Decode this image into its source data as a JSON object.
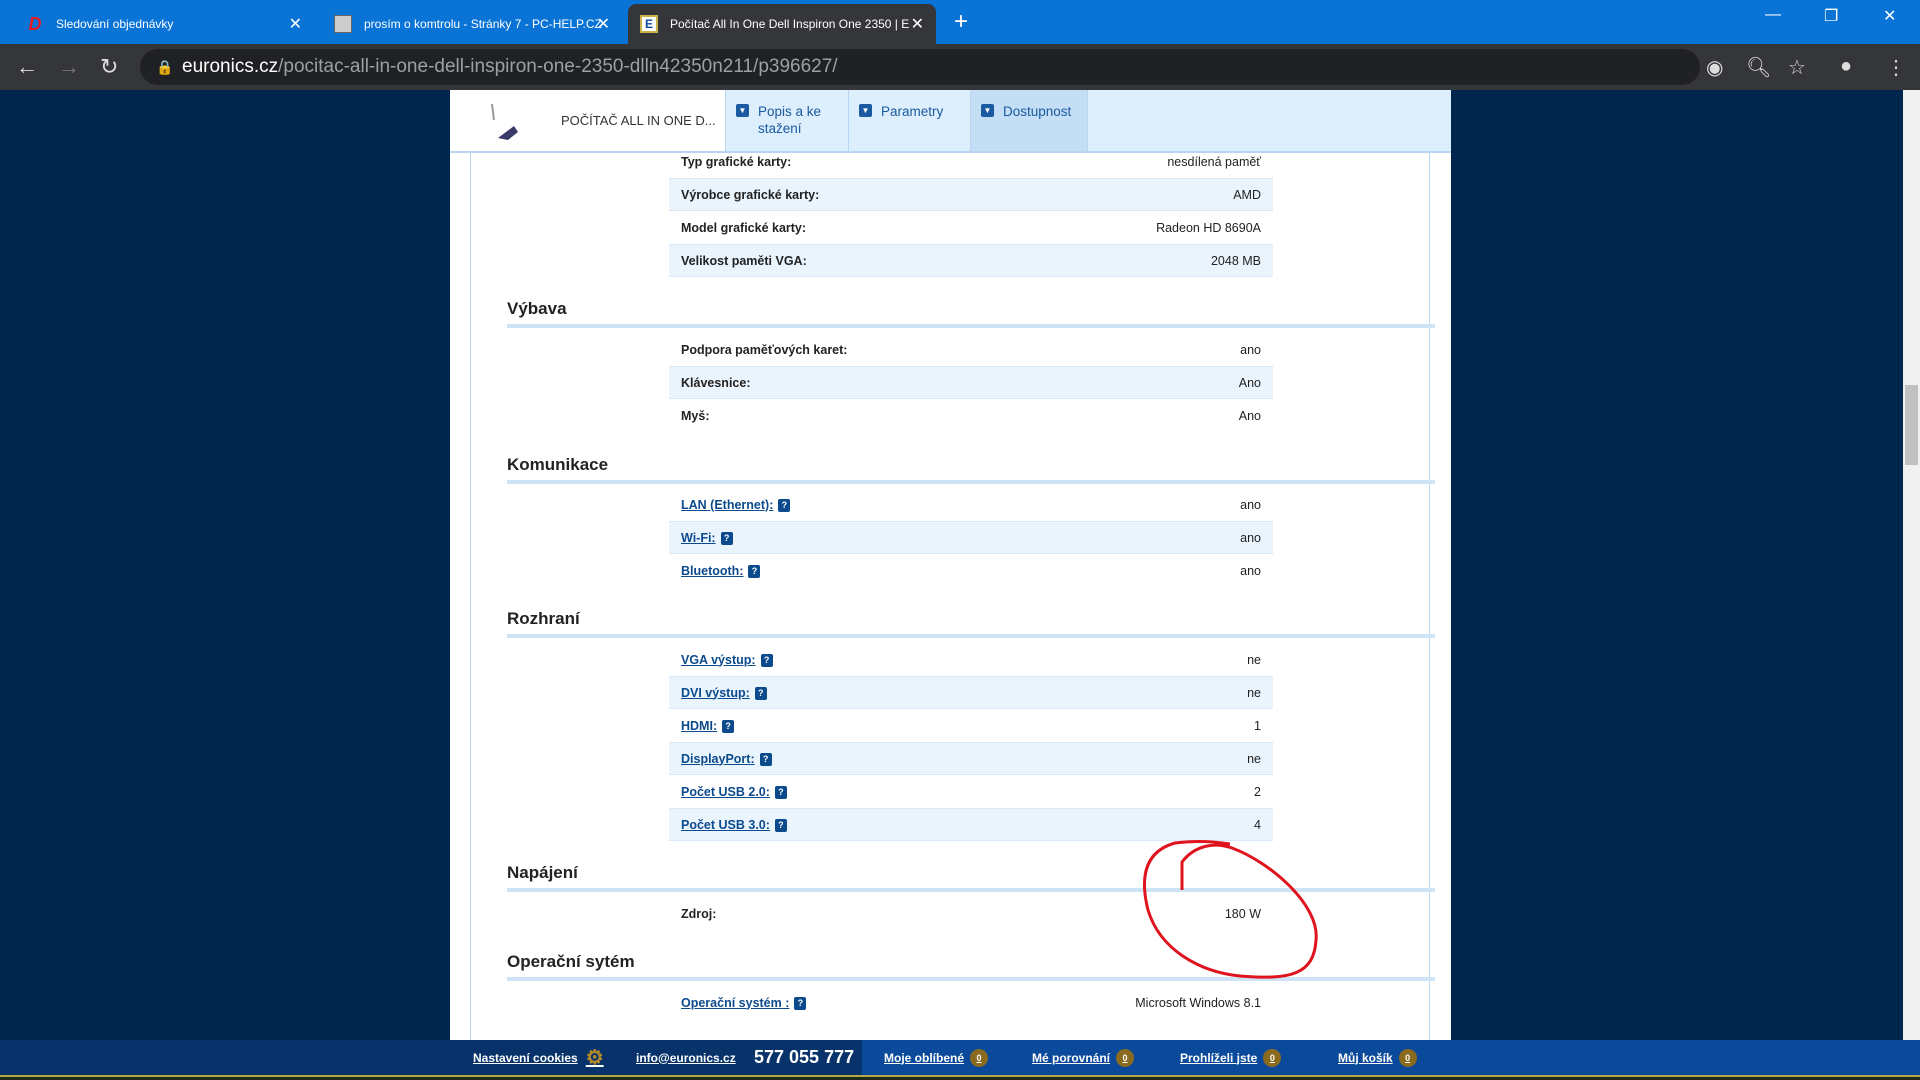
{
  "browser": {
    "tabs": [
      {
        "title": "Sledování objednávky",
        "icon": "d-logo-icon",
        "active": false
      },
      {
        "title": "prosím o komtrolu - Stránky 7 - PC-HELP.CZ",
        "icon": "computer-icon",
        "active": false
      },
      {
        "title": "Počítač All In One Dell Inspiron One 2350 | E",
        "icon": "euronics-icon",
        "active": true
      }
    ],
    "url_domain": "euronics.cz",
    "url_path": "/pocitac-all-in-one-dell-inspiron-one-2350-dlln42350n211/p396627/"
  },
  "product_header": {
    "name": "POČÍTAČ ALL IN ONE D...",
    "tabs": [
      "Popis a ke stažení",
      "Parametry",
      "Dostupnost"
    ]
  },
  "sections": [
    {
      "title": "",
      "rows": [
        {
          "label": "Typ grafické karty:",
          "value": "nesdílená paměť",
          "link": false
        },
        {
          "label": "Výrobce grafické karty:",
          "value": "AMD",
          "link": false
        },
        {
          "label": "Model grafické karty:",
          "value": "Radeon HD 8690A",
          "link": false
        },
        {
          "label": "Velikost paměti VGA:",
          "value": "2048 MB",
          "link": false
        }
      ]
    },
    {
      "title": "Výbava",
      "rows": [
        {
          "label": "Podpora paměťových karet:",
          "value": "ano",
          "link": false
        },
        {
          "label": "Klávesnice:",
          "value": "Ano",
          "link": false
        },
        {
          "label": "Myš:",
          "value": "Ano",
          "link": false
        }
      ]
    },
    {
      "title": "Komunikace",
      "rows": [
        {
          "label": "LAN (Ethernet):",
          "value": "ano",
          "link": true
        },
        {
          "label": "Wi-Fi:",
          "value": "ano",
          "link": true
        },
        {
          "label": "Bluetooth:",
          "value": "ano",
          "link": true
        }
      ]
    },
    {
      "title": "Rozhraní",
      "rows": [
        {
          "label": "VGA výstup:",
          "value": "ne",
          "link": true
        },
        {
          "label": "DVI výstup:",
          "value": "ne",
          "link": true
        },
        {
          "label": "HDMI:",
          "value": "1",
          "link": true
        },
        {
          "label": "DisplayPort:",
          "value": "ne",
          "link": true
        },
        {
          "label": "Počet USB 2.0:",
          "value": "2",
          "link": true
        },
        {
          "label": "Počet USB 3.0:",
          "value": "4",
          "link": true
        }
      ]
    },
    {
      "title": "Napájení",
      "rows": [
        {
          "label": "Zdroj:",
          "value": "180 W",
          "link": false
        }
      ]
    },
    {
      "title": "Operační sytém",
      "rows": [
        {
          "label": "Operační systém :",
          "value": "Microsoft Windows 8.1",
          "link": true
        }
      ]
    }
  ],
  "help_badge": "?",
  "footer": {
    "cookies": "Nastavení cookies",
    "email": "info@euronics.cz",
    "phone": "577 055 777",
    "links": [
      {
        "label": "Moje oblíbené",
        "count": "0"
      },
      {
        "label": "Mé porovnání",
        "count": "0"
      },
      {
        "label": "Prohlíželi jste",
        "count": "0"
      },
      {
        "label": "Můj košík",
        "count": "0"
      }
    ]
  },
  "annotation_color": "#e0141e"
}
